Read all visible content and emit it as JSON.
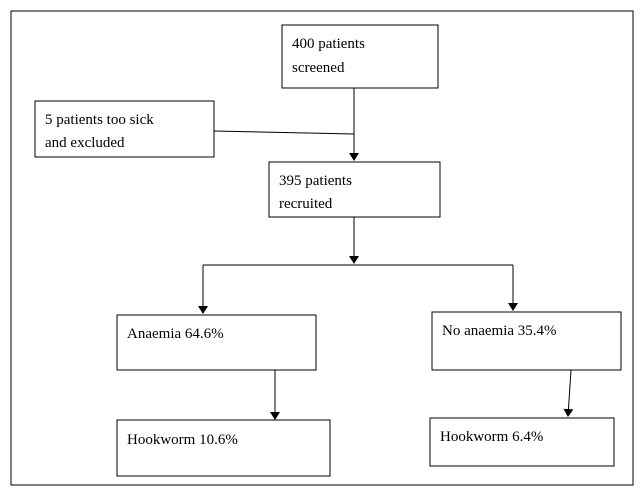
{
  "nodes": [
    {
      "lines": [
        "400 patients",
        "screened"
      ]
    },
    {
      "lines": [
        "5 patients too sick",
        "and excluded"
      ]
    },
    {
      "lines": [
        "395 patients",
        "recruited"
      ]
    },
    {
      "lines": [
        "Anaemia 64.6%"
      ]
    },
    {
      "lines": [
        "No anaemia 35.4%"
      ]
    },
    {
      "lines": [
        "Hookworm 10.6%"
      ]
    },
    {
      "lines": [
        "Hookworm 6.4%"
      ]
    }
  ]
}
